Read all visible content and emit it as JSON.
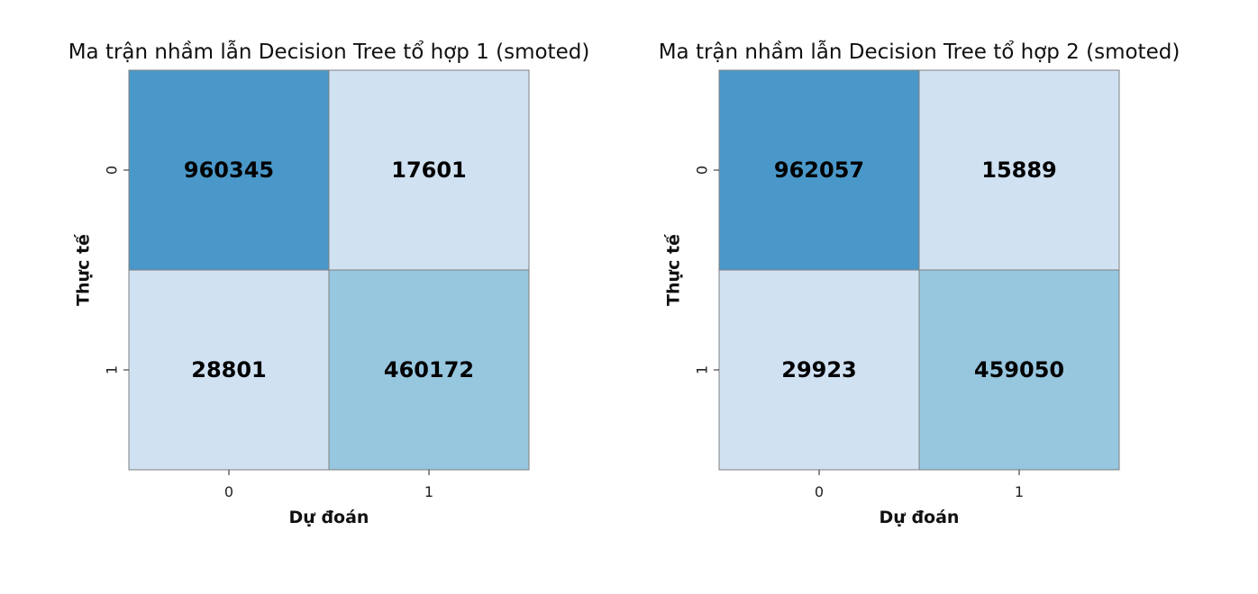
{
  "chart_data": [
    {
      "type": "heatmap",
      "title": "Ma trận nhầm lẫn Decision Tree tổ hợp 1 (smoted)",
      "xlabel": "Dự đoán",
      "ylabel": "Thực tế",
      "x_categories": [
        "0",
        "1"
      ],
      "y_categories": [
        "0",
        "1"
      ],
      "values": [
        [
          960345,
          17601
        ],
        [
          28801,
          460172
        ]
      ],
      "colorbar": false,
      "cell_colors": [
        [
          "#4a98c9",
          "#d0e1f2"
        ],
        [
          "#d0e1f2",
          "#97c6df"
        ]
      ],
      "cell_border_color": "#808080"
    },
    {
      "type": "heatmap",
      "title": "Ma trận nhầm lẫn Decision Tree tổ hợp 2 (smoted)",
      "xlabel": "Dự đoán",
      "ylabel": "Thực tế",
      "x_categories": [
        "0",
        "1"
      ],
      "y_categories": [
        "0",
        "1"
      ],
      "values": [
        [
          962057,
          15889
        ],
        [
          29923,
          459050
        ]
      ],
      "colorbar": false,
      "cell_colors": [
        [
          "#4a98c9",
          "#d0e1f2"
        ],
        [
          "#d0e1f2",
          "#97c6df"
        ]
      ],
      "cell_border_color": "#808080"
    }
  ]
}
